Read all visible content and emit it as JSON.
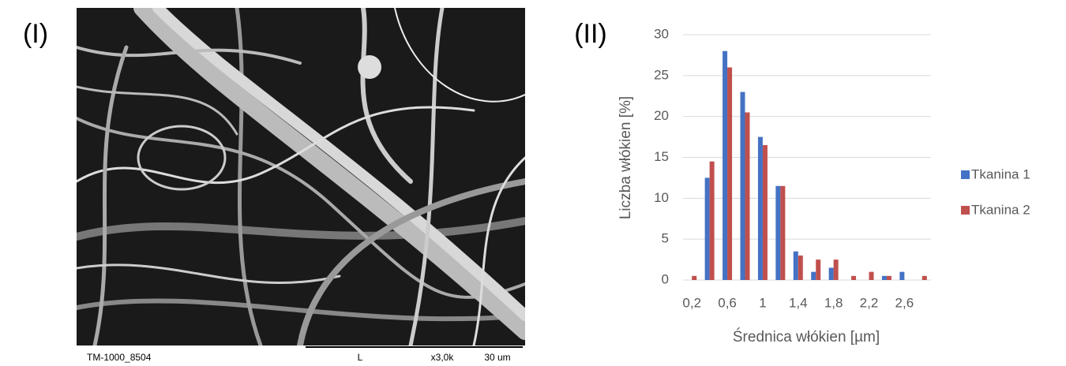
{
  "panel_labels": [
    "(I)",
    "(II)"
  ],
  "image": {
    "caption_left": "TM-1000_8504",
    "caption_mode": "L",
    "caption_magnification": "x3,0k",
    "caption_scale": "30 um"
  },
  "chart_data": {
    "type": "bar",
    "x_label": "Średnica włókien [µm]",
    "y_label": "Liczba włókien [%]",
    "categories": [
      "0,2",
      null,
      "0,6",
      null,
      "1",
      null,
      "1,4",
      null,
      "1,8",
      null,
      "2,2",
      null,
      "2,6",
      null
    ],
    "series": [
      {
        "name": "Tkanina 1",
        "color": "#4472c4",
        "values": [
          0,
          12.5,
          28,
          23,
          17.5,
          11.5,
          3.5,
          1,
          1.5,
          0,
          0,
          0.5,
          1,
          0
        ]
      },
      {
        "name": "Tkanina 2",
        "color": "#c0504d",
        "values": [
          0.5,
          14.5,
          26,
          20.5,
          16.5,
          11.5,
          3,
          2.5,
          2.5,
          0.5,
          1,
          0.5,
          0,
          0.5
        ]
      }
    ],
    "ylim": [
      0,
      30
    ],
    "yticks": [
      0,
      5,
      10,
      15,
      20,
      25,
      30
    ],
    "grid": true,
    "legend": "right"
  }
}
